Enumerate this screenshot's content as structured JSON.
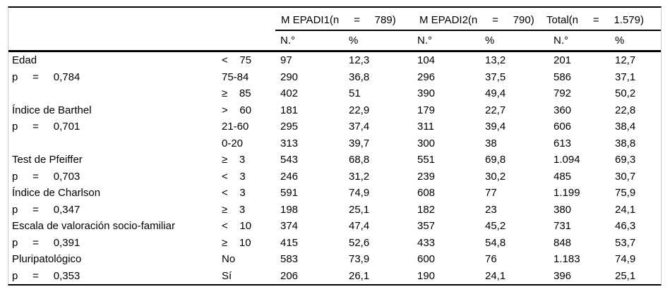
{
  "header": {
    "groups": [
      "M EPADI1(n     =     789)",
      "M EPADI2(n     =     790)",
      "Total(n     =     1.579)"
    ],
    "subcols": [
      "N.°",
      "%",
      "N.°",
      "%",
      "N.°",
      "%"
    ]
  },
  "rows": [
    {
      "label": "Edad",
      "cat": "<    75",
      "values": [
        "97",
        "12,3",
        "104",
        "13,2",
        "201",
        "12,7"
      ]
    },
    {
      "label": "p     =     0,784",
      "cat": "75-84",
      "values": [
        "290",
        "36,8",
        "296",
        "37,5",
        "586",
        "37,1"
      ]
    },
    {
      "label": "",
      "cat": "≥    85",
      "values": [
        "402",
        "51",
        "390",
        "49,4",
        "792",
        "50,2"
      ]
    },
    {
      "label": "Índice de Barthel",
      "cat": ">    60",
      "values": [
        "181",
        "22,9",
        "179",
        "22,7",
        "360",
        "22,8"
      ]
    },
    {
      "label": "p     =     0,701",
      "cat": "21-60",
      "values": [
        "295",
        "37,4",
        "311",
        "39,4",
        "606",
        "38,4"
      ]
    },
    {
      "label": "",
      "cat": "0-20",
      "values": [
        "313",
        "39,7",
        "300",
        "38",
        "613",
        "38,8"
      ]
    },
    {
      "label": "Test de Pfeiffer",
      "cat": "≥    3",
      "values": [
        "543",
        "68,8",
        "551",
        "69,8",
        "1.094",
        "69,3"
      ]
    },
    {
      "label": "p     =     0,703",
      "cat": "<    3",
      "values": [
        "246",
        "31,2",
        "239",
        "30,2",
        "485",
        "30,7"
      ]
    },
    {
      "label": "Índice de Charlson",
      "cat": "<    3",
      "values": [
        "591",
        "74,9",
        "608",
        "77",
        "1.199",
        "75,9"
      ]
    },
    {
      "label": "p     =     0,347",
      "cat": "≥    3",
      "values": [
        "198",
        "25,1",
        "182",
        "23",
        "380",
        "24,1"
      ]
    },
    {
      "label": "Escala de valoración socio-familiar",
      "cat": "<    10",
      "values": [
        "374",
        "47,4",
        "357",
        "45,2",
        "731",
        "46,3"
      ]
    },
    {
      "label": "p     =     0,391",
      "cat": "≥    10",
      "values": [
        "415",
        "52,6",
        "433",
        "54,8",
        "848",
        "53,7"
      ]
    },
    {
      "label": "Pluripatológico",
      "cat": "No",
      "values": [
        "583",
        "73,9",
        "600",
        "76",
        "1.183",
        "74,9"
      ]
    },
    {
      "label": "p     =     0,353",
      "cat": "Sí",
      "values": [
        "206",
        "26,1",
        "190",
        "24,1",
        "396",
        "25,1"
      ]
    }
  ]
}
